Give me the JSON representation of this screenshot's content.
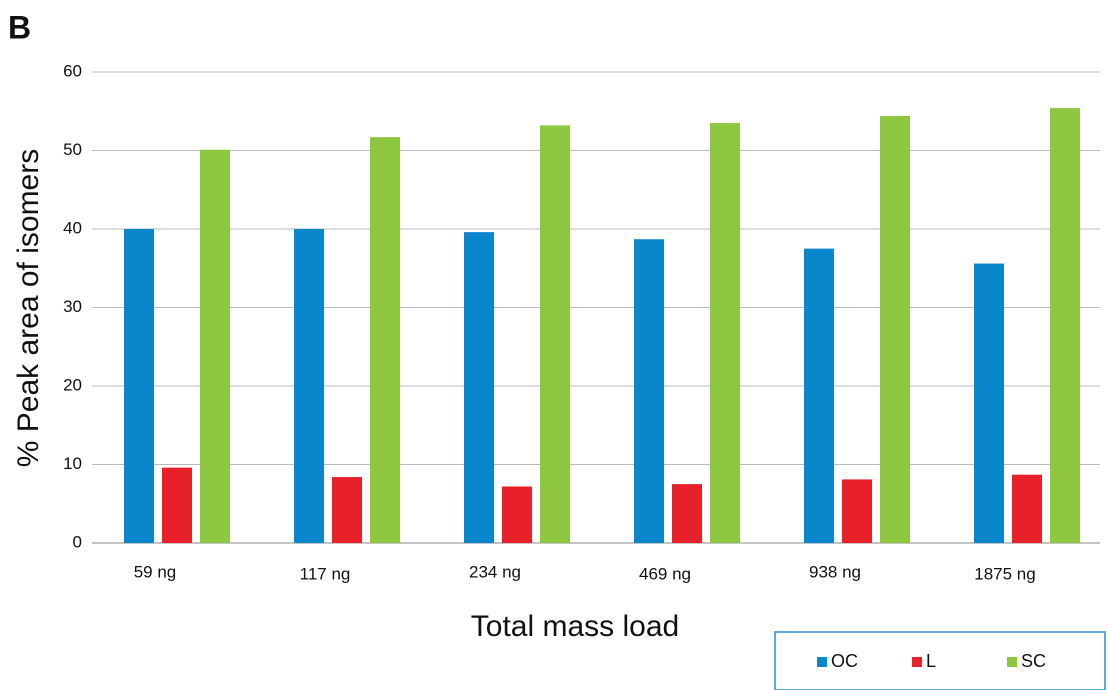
{
  "chart_data": {
    "type": "bar",
    "panel_label": "B",
    "x_label": "Total mass load",
    "y_label": "% Peak area of isomers",
    "categories": [
      "59 ng",
      "117 ng",
      "234 ng",
      "469 ng",
      "938 ng",
      "1875 ng"
    ],
    "series": [
      {
        "name": "OC",
        "color": "#0a86cc",
        "values": [
          40,
          40,
          39.6,
          38.7,
          37.5,
          35.6
        ]
      },
      {
        "name": "L",
        "color": "#e8202a",
        "values": [
          9.6,
          8.4,
          7.2,
          7.5,
          8.1,
          8.7
        ]
      },
      {
        "name": "SC",
        "color": "#8dc63f",
        "values": [
          50.1,
          51.7,
          53.2,
          53.5,
          54.4,
          55.4
        ]
      }
    ],
    "ylim": [
      0,
      60
    ],
    "yticks": [
      0,
      10,
      20,
      30,
      40,
      50,
      60
    ],
    "grid": true,
    "legend": "bottom-right"
  }
}
